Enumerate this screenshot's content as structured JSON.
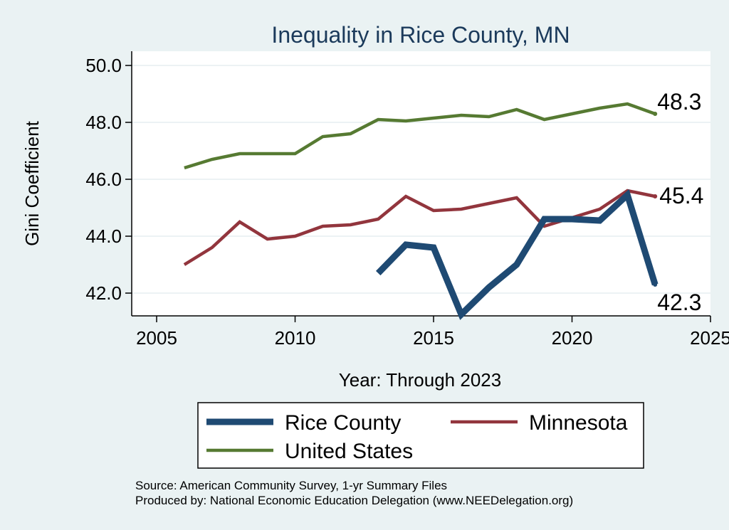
{
  "chart_data": {
    "type": "line",
    "title": "Inequality in Rice County, MN",
    "xlabel": "Year: Through 2023",
    "ylabel": "Gini Coefficient",
    "xlim": [
      2005,
      2025
    ],
    "ylim": [
      41.2,
      50.5
    ],
    "xticks": [
      2005,
      2010,
      2015,
      2020,
      2025
    ],
    "xtick_labels": [
      "2005",
      "2010",
      "2015",
      "2020",
      "2025"
    ],
    "yticks": [
      42,
      44,
      46,
      48,
      50
    ],
    "ytick_labels": [
      "42.0",
      "44.0",
      "46.0",
      "48.0",
      "50.0"
    ],
    "grid": true,
    "series": [
      {
        "name": "Rice County",
        "color": "#1f4a73",
        "x": [
          2013,
          2014,
          2015,
          2016,
          2017,
          2018,
          2019,
          2020,
          2021,
          2022,
          2023
        ],
        "values": [
          42.7,
          43.7,
          43.6,
          41.25,
          42.2,
          43.0,
          44.6,
          44.6,
          44.55,
          45.45,
          42.3
        ],
        "end_label": "42.3"
      },
      {
        "name": "Minnesota",
        "color": "#92353d",
        "x": [
          2006,
          2007,
          2008,
          2009,
          2010,
          2011,
          2012,
          2013,
          2014,
          2015,
          2016,
          2017,
          2018,
          2019,
          2020,
          2021,
          2022,
          2023
        ],
        "values": [
          43.0,
          43.6,
          44.5,
          43.9,
          44.0,
          44.35,
          44.4,
          44.6,
          45.4,
          44.9,
          44.95,
          45.15,
          45.35,
          44.35,
          44.65,
          44.95,
          45.6,
          45.4
        ],
        "end_label": "45.4"
      },
      {
        "name": "United States",
        "color": "#567a32",
        "x": [
          2006,
          2007,
          2008,
          2009,
          2010,
          2011,
          2012,
          2013,
          2014,
          2015,
          2016,
          2017,
          2018,
          2019,
          2020,
          2021,
          2022,
          2023
        ],
        "values": [
          46.4,
          46.7,
          46.9,
          46.9,
          46.9,
          47.5,
          47.6,
          48.1,
          48.05,
          48.15,
          48.25,
          48.2,
          48.45,
          48.1,
          48.3,
          48.5,
          48.65,
          48.3
        ],
        "end_label": "48.3"
      }
    ],
    "legend": {
      "position": "bottom",
      "entries": [
        "Rice County",
        "Minnesota",
        "United States"
      ]
    },
    "source_lines": [
      "Source: American Community Survey, 1-yr Summary Files",
      "Produced by: National Economic Education Delegation (www.NEEDelegation.org)"
    ]
  }
}
